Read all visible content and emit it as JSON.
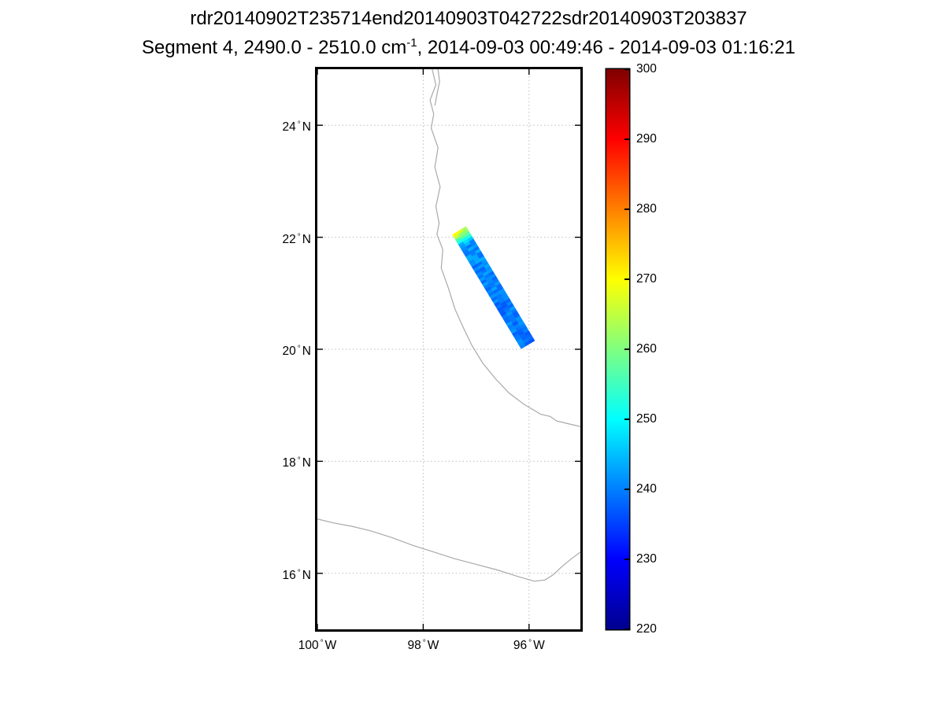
{
  "figure": {
    "background_color": "#ffffff",
    "title_line1": "rdr20140902T235714end20140903T042722sdr20140903T203837",
    "title_line2": {
      "prefix": "Segment 4, 2490.0 - 2510.0 cm",
      "superscript": "-1",
      "suffix": ", 2014-09-03 00:49:46 - 2014-09-03 01:16:21"
    }
  },
  "chart_data": {
    "type": "heatmap",
    "title": "rdr20140902T235714end20140903T042722sdr20140903T203837",
    "subtitle": "Segment 4, 2490.0 - 2510.0 cm^-1, 2014-09-03 00:49:46 - 2014-09-03 01:16:21",
    "axes": {
      "lon_range": [
        -100.0,
        -95.03
      ],
      "lat_range": [
        15.0,
        25.0
      ],
      "grid": true,
      "grid_style": "dotted",
      "lat_ticks": [
        {
          "value": 24,
          "num": "24",
          "hem": "N"
        },
        {
          "value": 22,
          "num": "22",
          "hem": "N"
        },
        {
          "value": 20,
          "num": "20",
          "hem": "N"
        },
        {
          "value": 18,
          "num": "18",
          "hem": "N"
        },
        {
          "value": 16,
          "num": "16",
          "hem": "N"
        }
      ],
      "lon_ticks": [
        {
          "value": -100,
          "num": "100",
          "hem": "W"
        },
        {
          "value": -98,
          "num": "98",
          "hem": "W"
        },
        {
          "value": -96,
          "num": "96",
          "hem": "W"
        }
      ]
    },
    "colorbar": {
      "min": 220,
      "max": 300,
      "colormap": "jet",
      "tick_values": [
        300,
        290,
        280,
        270,
        260,
        250,
        240,
        230,
        220
      ],
      "gradient_stops": [
        {
          "value": 220,
          "color": "#00008F"
        },
        {
          "value": 230,
          "color": "#0000FF"
        },
        {
          "value": 250,
          "color": "#00FFFF"
        },
        {
          "value": 270,
          "color": "#FFFF00"
        },
        {
          "value": 290,
          "color": "#FF0000"
        },
        {
          "value": 300,
          "color": "#800000"
        }
      ]
    },
    "swath": {
      "center_start": {
        "lon": -97.32,
        "lat": 22.12
      },
      "center_end": {
        "lon": -96.02,
        "lat": 20.08
      },
      "width_deg": 0.3,
      "scan_lines": 46,
      "cells_across": 3,
      "noise_amplitude_K": 3,
      "value_profile": [
        {
          "frac": 0.0,
          "value": 265
        },
        {
          "frac": 0.05,
          "value": 257
        },
        {
          "frac": 0.09,
          "value": 246
        },
        {
          "frac": 0.14,
          "value": 241
        },
        {
          "frac": 1.0,
          "value": 239
        }
      ],
      "tip_hotspot": {
        "scan_lines": 2,
        "west_cell_boost_K": 7,
        "mid_cell_boost_K": 2
      }
    },
    "coastlines": [
      {
        "name": "gulf-coast",
        "points": [
          [
            -97.83,
            25.0
          ],
          [
            -97.76,
            24.72
          ],
          [
            -97.87,
            24.45
          ],
          [
            -97.8,
            24.2
          ],
          [
            -97.85,
            23.95
          ],
          [
            -97.72,
            23.6
          ],
          [
            -97.78,
            23.25
          ],
          [
            -97.68,
            22.9
          ],
          [
            -97.76,
            22.55
          ],
          [
            -97.7,
            22.25
          ],
          [
            -97.74,
            22.05
          ],
          [
            -97.63,
            21.78
          ],
          [
            -97.66,
            21.45
          ],
          [
            -97.52,
            21.08
          ],
          [
            -97.4,
            20.72
          ],
          [
            -97.24,
            20.38
          ],
          [
            -97.08,
            20.07
          ],
          [
            -96.88,
            19.76
          ],
          [
            -96.64,
            19.48
          ],
          [
            -96.38,
            19.22
          ],
          [
            -96.1,
            19.02
          ],
          [
            -95.78,
            18.84
          ],
          [
            -95.6,
            18.8
          ],
          [
            -95.48,
            18.72
          ],
          [
            -95.3,
            18.68
          ],
          [
            -95.03,
            18.62
          ]
        ]
      },
      {
        "name": "barrier-island",
        "points": [
          [
            -97.72,
            25.0
          ],
          [
            -97.69,
            24.78
          ],
          [
            -97.74,
            24.55
          ],
          [
            -97.78,
            24.35
          ]
        ]
      },
      {
        "name": "pacific-coast",
        "points": [
          [
            -100.0,
            16.97
          ],
          [
            -99.7,
            16.9
          ],
          [
            -99.35,
            16.84
          ],
          [
            -99.0,
            16.76
          ],
          [
            -98.6,
            16.64
          ],
          [
            -98.2,
            16.5
          ],
          [
            -97.8,
            16.38
          ],
          [
            -97.4,
            16.26
          ],
          [
            -97.0,
            16.16
          ],
          [
            -96.6,
            16.06
          ],
          [
            -96.2,
            15.94
          ],
          [
            -95.9,
            15.86
          ],
          [
            -95.7,
            15.88
          ],
          [
            -95.55,
            15.97
          ],
          [
            -95.38,
            16.12
          ],
          [
            -95.2,
            16.26
          ],
          [
            -95.03,
            16.38
          ]
        ]
      }
    ],
    "style": {
      "grid_color": "#bdbdbd",
      "coast_color": "#a9a9a9",
      "axis_color": "#000000"
    }
  }
}
